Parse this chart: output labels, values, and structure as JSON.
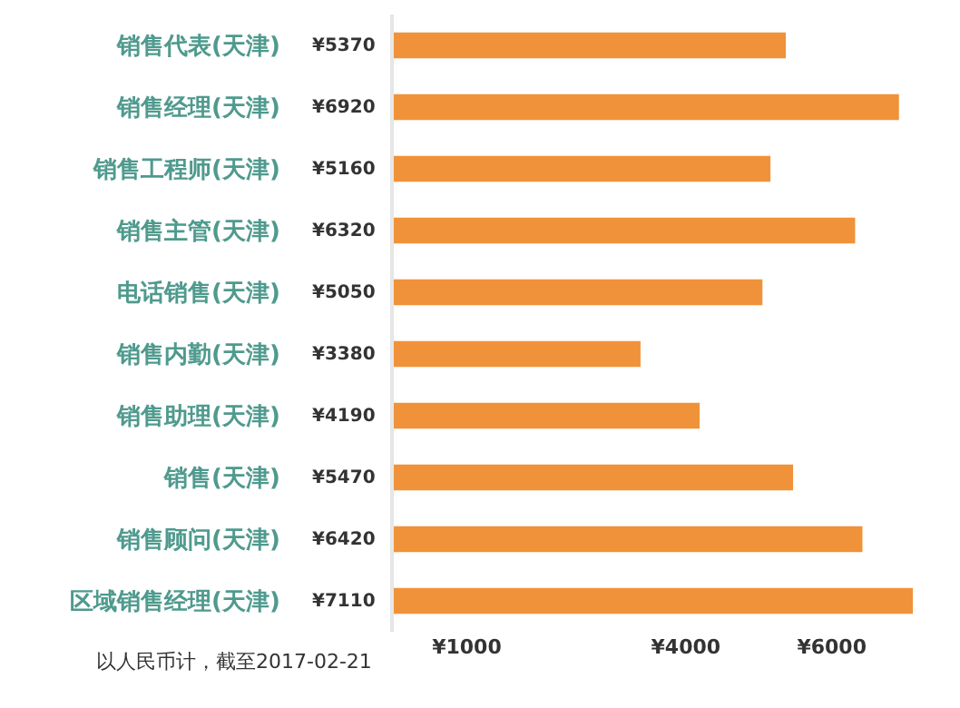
{
  "chart_data": {
    "type": "bar",
    "orientation": "horizontal",
    "categories": [
      "销售代表(天津)",
      "销售经理(天津)",
      "销售工程师(天津)",
      "销售主管(天津)",
      "电话销售(天津)",
      "销售内勤(天津)",
      "销售助理(天津)",
      "销售(天津)",
      "销售顾问(天津)",
      "区域销售经理(天津)"
    ],
    "values": [
      5370,
      6920,
      5160,
      6320,
      5050,
      3380,
      4190,
      5470,
      6420,
      7110
    ],
    "value_labels": [
      "¥5370",
      "¥6920",
      "¥5160",
      "¥6320",
      "¥5050",
      "¥3380",
      "¥4190",
      "¥5470",
      "¥6420",
      "¥7110"
    ],
    "color": "#f0923a",
    "xlim": [
      0,
      7110
    ],
    "xticks": [
      {
        "value": 1000,
        "label": "¥1000"
      },
      {
        "value": 4000,
        "label": "¥4000"
      },
      {
        "value": 6000,
        "label": "¥6000"
      }
    ],
    "annotations": [
      "以人民币计，截至2017-02-21"
    ],
    "legend": false
  }
}
